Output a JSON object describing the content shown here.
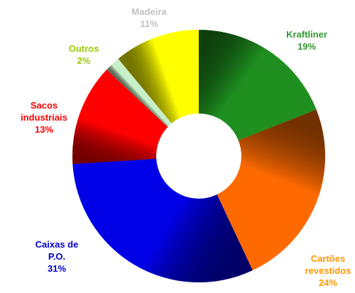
{
  "chart_data": {
    "type": "donut",
    "categories": [
      "Kraftliner",
      "Cartões revestidos",
      "Caixas de P.O.",
      "Sacos industriais",
      "Outros",
      "Madeira"
    ],
    "values": [
      19,
      24,
      31,
      13,
      2,
      11
    ],
    "value_labels": [
      "19%",
      "24%",
      "31%",
      "13%",
      "2%",
      "11%"
    ],
    "colors": [
      "#1f8f1f",
      "#ff6a00",
      "#0000e6",
      "#ff0000",
      "#c8f0c8",
      "#ffff00"
    ],
    "label_colors": [
      "#339933",
      "#ff9900",
      "#0000cc",
      "#ff0000",
      "#99cc00",
      "#c0c0c0"
    ]
  }
}
